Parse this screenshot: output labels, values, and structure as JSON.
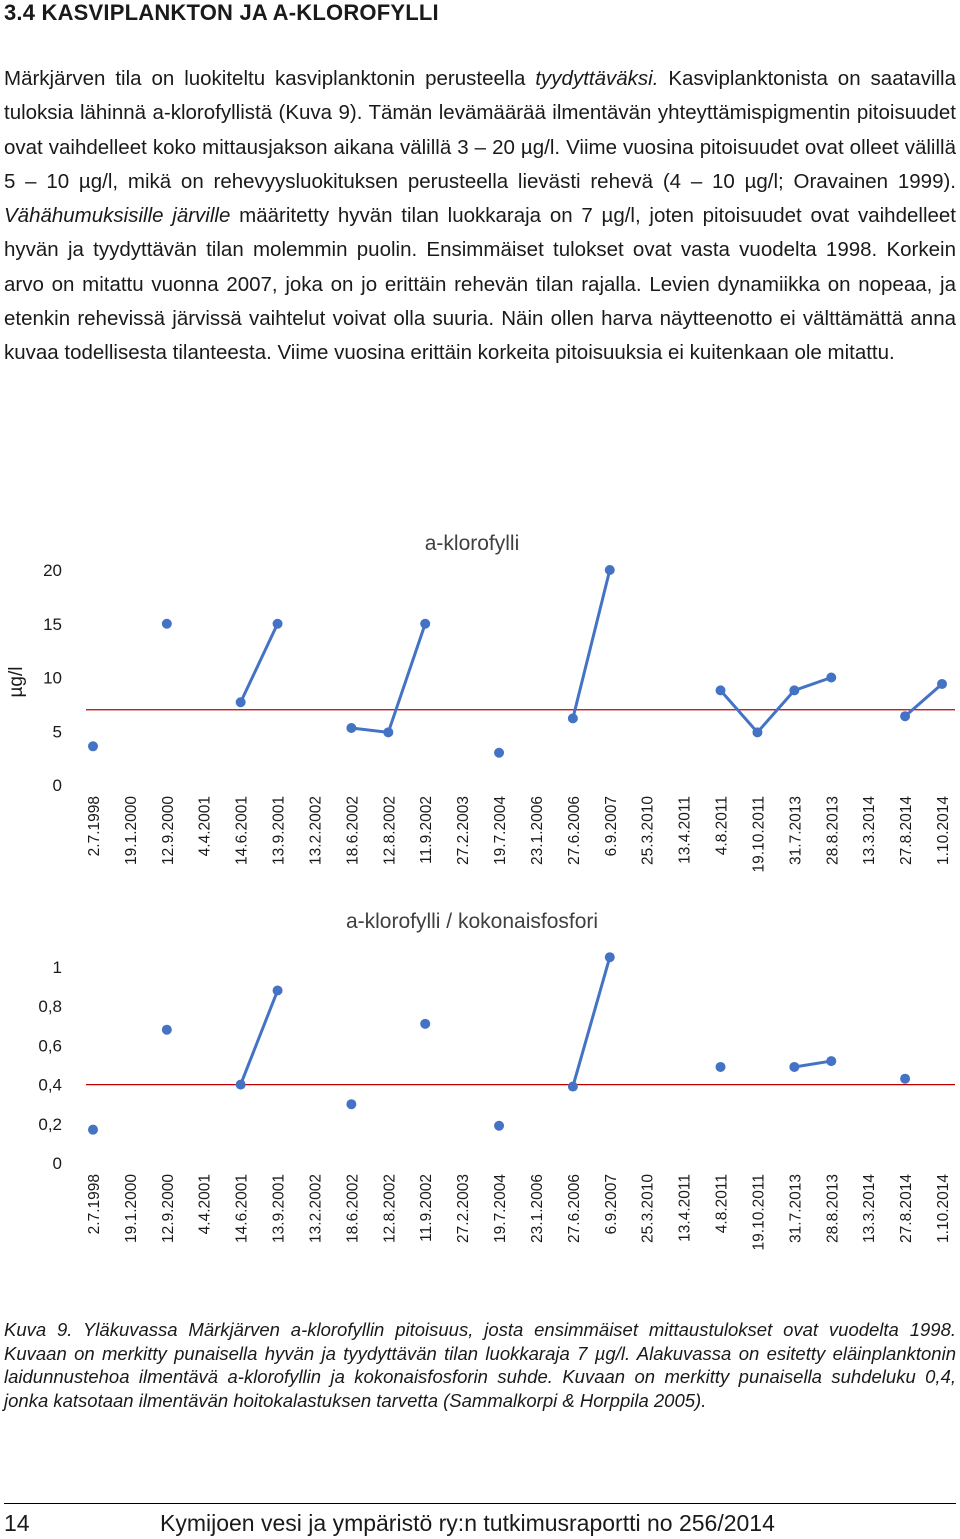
{
  "section": {
    "heading": "3.4 KASVIPLANKTON JA A-KLOROFYLLI"
  },
  "body": {
    "s1": "Märkjärven tila on luokiteltu kasviplanktonin perusteella ",
    "s1_em": "tyydyttäväksi.",
    "s2": " Kasviplanktonista on saatavilla tuloksia lähinnä a-klorofyllistä (Kuva 9). Tämän levämäärää ilmentävän yhteyttämispigmentin pitoisuudet ovat vaihdelleet koko mittausjakson aikana välillä 3 – 20 µg/l. Viime vuosina pitoisuudet ovat olleet välillä 5 – 10 µg/l, mikä on rehevyysluokituksen perusteella lievästi rehevä (4 – 10 µg/l; Oravainen 1999). ",
    "s3_em": "Vähähumuksisille järville",
    "s4": " määritetty hyvän tilan luokkaraja on 7 µg/l, joten pitoisuudet ovat vaihdelleet hyvän ja tyydyttävän tilan molemmin puolin. Ensimmäiset tulokset ovat vasta vuodelta 1998. Korkein arvo on mitattu vuonna 2007, joka on jo erittäin rehevän tilan rajalla. Levien dynamiikka on nopeaa, ja etenkin rehevissä järvissä vaihtelut voivat olla suuria. Näin ollen harva näytteenotto ei välttämättä anna kuvaa todellisesta tilanteesta. Viime vuosina erittäin korkeita pitoisuuksia ei kuitenkaan ole mitattu."
  },
  "chart_data": [
    {
      "type": "line",
      "title": "a-klorofylli",
      "xlabel": "",
      "ylabel": "µg/l",
      "ylim": [
        0,
        20
      ],
      "yticks": [
        "0",
        "5",
        "10",
        "15",
        "20"
      ],
      "yticks_values": [
        0,
        5,
        10,
        15,
        20
      ],
      "reference_line": 7,
      "reference_color": "#c00000",
      "series_color": "#4472c4",
      "categories": [
        "2.7.1998",
        "19.1.2000",
        "12.9.2000",
        "4.4.2001",
        "14.6.2001",
        "13.9.2001",
        "13.2.2002",
        "18.6.2002",
        "12.8.2002",
        "11.9.2002",
        "27.2.2003",
        "19.7.2004",
        "23.1.2006",
        "27.6.2006",
        "6.9.2007",
        "25.3.2010",
        "13.4.2011",
        "4.8.2011",
        "19.10.2011",
        "31.7.2013",
        "28.8.2013",
        "13.3.2014",
        "27.8.2014",
        "1.10.2014"
      ],
      "values": [
        3.6,
        null,
        15,
        null,
        7.7,
        15,
        null,
        5.3,
        4.9,
        15,
        null,
        3,
        null,
        6.2,
        20,
        null,
        null,
        8.8,
        4.9,
        8.8,
        10,
        null,
        6.4,
        9.4
      ]
    },
    {
      "type": "line",
      "title": "a-klorofylli / kokonaisfosfori",
      "xlabel": "",
      "ylabel": "",
      "ylim": [
        0,
        1
      ],
      "yticks": [
        "0",
        "0,2",
        "0,4",
        "0,6",
        "0,8",
        "1"
      ],
      "yticks_values": [
        0,
        0.2,
        0.4,
        0.6,
        0.8,
        1
      ],
      "reference_line": 0.4,
      "reference_color": "#c00000",
      "series_color": "#4472c4",
      "categories": [
        "2.7.1998",
        "19.1.2000",
        "12.9.2000",
        "4.4.2001",
        "14.6.2001",
        "13.9.2001",
        "13.2.2002",
        "18.6.2002",
        "12.8.2002",
        "11.9.2002",
        "27.2.2003",
        "19.7.2004",
        "23.1.2006",
        "27.6.2006",
        "6.9.2007",
        "25.3.2010",
        "13.4.2011",
        "4.8.2011",
        "19.10.2011",
        "31.7.2013",
        "28.8.2013",
        "13.3.2014",
        "27.8.2014",
        "1.10.2014"
      ],
      "values": [
        0.17,
        null,
        0.68,
        null,
        0.4,
        0.88,
        null,
        0.3,
        null,
        0.71,
        null,
        0.19,
        null,
        0.39,
        1.05,
        null,
        null,
        0.49,
        null,
        0.49,
        0.52,
        null,
        0.43,
        null
      ]
    }
  ],
  "caption": {
    "text": "Kuva 9. Yläkuvassa Märkjärven a-klorofyllin pitoisuus, josta ensimmäiset mittaustulokset ovat vuodelta 1998. Kuvaan on merkitty punaisella hyvän ja tyydyttävän tilan luokkaraja 7 µg/l. Alakuvassa on esitetty eläinplanktonin laidunnustehoa ilmentävä a-klorofyllin ja kokonaisfosforin suhde. Kuvaan on merkitty punaisella suhdeluku 0,4, jonka katsotaan ilmentävän hoitokalastuksen tarvetta (Sammalkorpi & Horppila 2005)."
  },
  "footer": {
    "page_number": "14",
    "title": "Kymijoen vesi ja ympäristö ry:n tutkimusraportti no 256/2014"
  }
}
